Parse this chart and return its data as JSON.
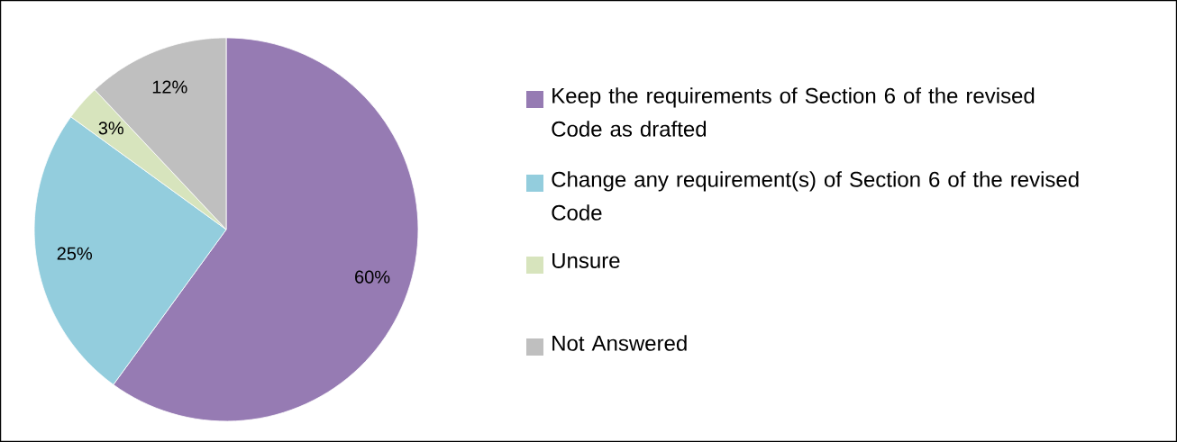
{
  "chart_data": {
    "type": "pie",
    "categories": [
      "Keep the requirements of Section 6 of the revised Code as drafted",
      "Change any requirement(s) of Section 6 of the revised Code",
      "Unsure",
      "Not Answered"
    ],
    "values": [
      60,
      25,
      3,
      12
    ],
    "value_labels": [
      "60%",
      "25%",
      "3%",
      "12%"
    ],
    "colors": [
      "#967bb3",
      "#93cddd",
      "#d7e4bd",
      "#bfbfbf"
    ],
    "legend": "right"
  }
}
